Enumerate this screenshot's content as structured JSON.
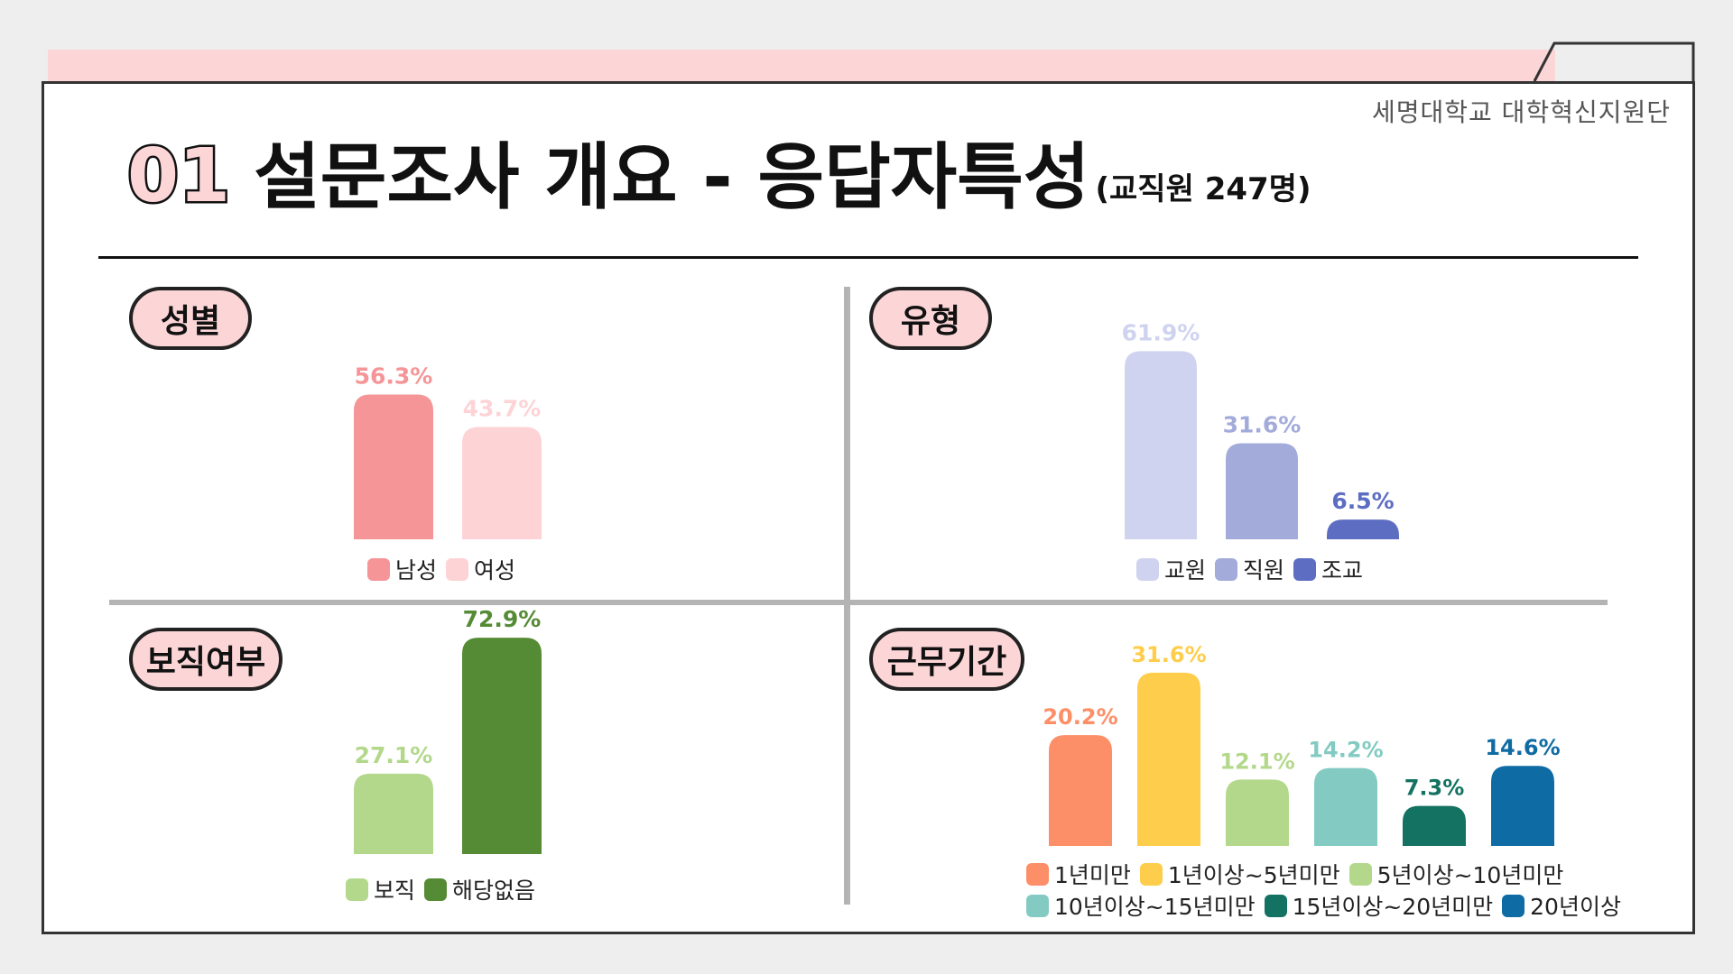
{
  "header": {
    "org": "세명대학교 대학혁신지원단",
    "number": "01",
    "title": "설문조사 개요 - 응답자특성",
    "subtitle": "(교직원 247명)"
  },
  "chart_data": [
    {
      "id": "gender",
      "type": "bar",
      "title": "성별",
      "categories": [
        "남성",
        "여성"
      ],
      "values": [
        56.3,
        43.7
      ],
      "labels": [
        "56.3%",
        "43.7%"
      ],
      "colors": [
        "#f59597",
        "#fdd3d6"
      ]
    },
    {
      "id": "type",
      "type": "bar",
      "title": "유형",
      "categories": [
        "교원",
        "직원",
        "조교"
      ],
      "values": [
        61.9,
        31.6,
        6.5
      ],
      "labels": [
        "61.9%",
        "31.6%",
        "6.5%"
      ],
      "colors": [
        "#cfd3ef",
        "#a3abdb",
        "#5d6ec2"
      ]
    },
    {
      "id": "position",
      "type": "bar",
      "title": "보직여부",
      "categories": [
        "보직",
        "해당없음"
      ],
      "values": [
        27.1,
        72.9
      ],
      "labels": [
        "27.1%",
        "72.9%"
      ],
      "colors": [
        "#b3d88b",
        "#558b35"
      ]
    },
    {
      "id": "tenure",
      "type": "bar",
      "title": "근무기간",
      "categories": [
        "1년미만",
        "1년이상~5년미만",
        "5년이상~10년미만",
        "10년이상~15년미만",
        "15년이상~20년미만",
        "20년이상"
      ],
      "values": [
        20.2,
        31.6,
        12.1,
        14.2,
        7.3,
        14.6
      ],
      "labels": [
        "20.2%",
        "31.6%",
        "12.1%",
        "14.2%",
        "7.3%",
        "14.6%"
      ],
      "colors": [
        "#fd8f68",
        "#fecd4b",
        "#b3d88b",
        "#83cbc2",
        "#137261",
        "#0f6ba4"
      ]
    }
  ]
}
